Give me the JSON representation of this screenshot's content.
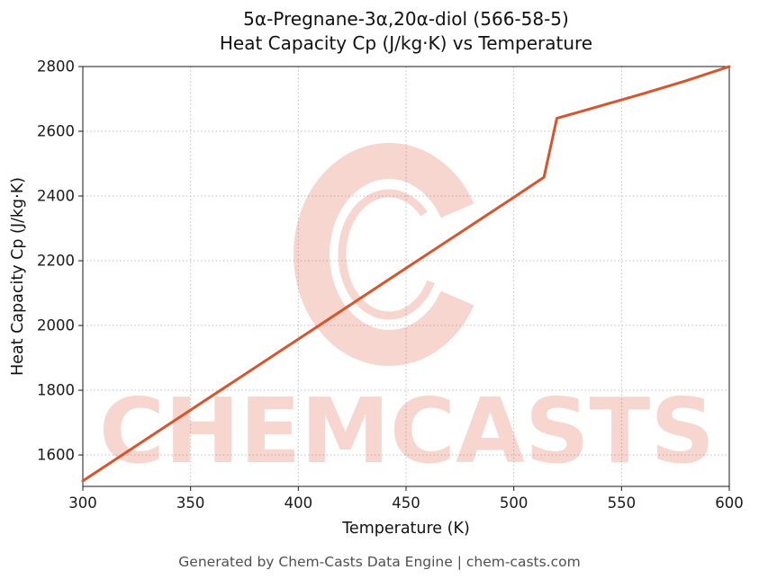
{
  "page": {
    "footer": "Generated by Chem-Casts Data Engine | chem-casts.com"
  },
  "chart_data": {
    "type": "line",
    "title_line1": "5α-Pregnane-3α,20α-diol (566-58-5)",
    "title_line2": "Heat Capacity Cp (J/kg·K) vs Temperature",
    "xlabel": "Temperature (K)",
    "ylabel": "Heat Capacity Cp (J/kg·K)",
    "xlim": [
      300,
      600
    ],
    "ylim": [
      1503,
      2800
    ],
    "xticks": [
      300,
      350,
      400,
      450,
      500,
      550,
      600
    ],
    "yticks": [
      1600,
      1800,
      2000,
      2200,
      2400,
      2600,
      2800
    ],
    "grid": true,
    "legend": "none",
    "line_color": "#d9542b",
    "series": [
      {
        "name": "Heat Capacity Cp",
        "x": [
          300,
          350,
          400,
          450,
          500,
          514,
          520,
          540,
          560,
          580,
          600
        ],
        "y": [
          1520,
          1739,
          1958,
          2177,
          2396,
          2458,
          2640,
          2678,
          2716,
          2756,
          2800
        ]
      }
    ],
    "annotations": [],
    "watermark": {
      "text": "CHEMCASTS",
      "color": "rgba(222,85,55,0.24)"
    }
  }
}
